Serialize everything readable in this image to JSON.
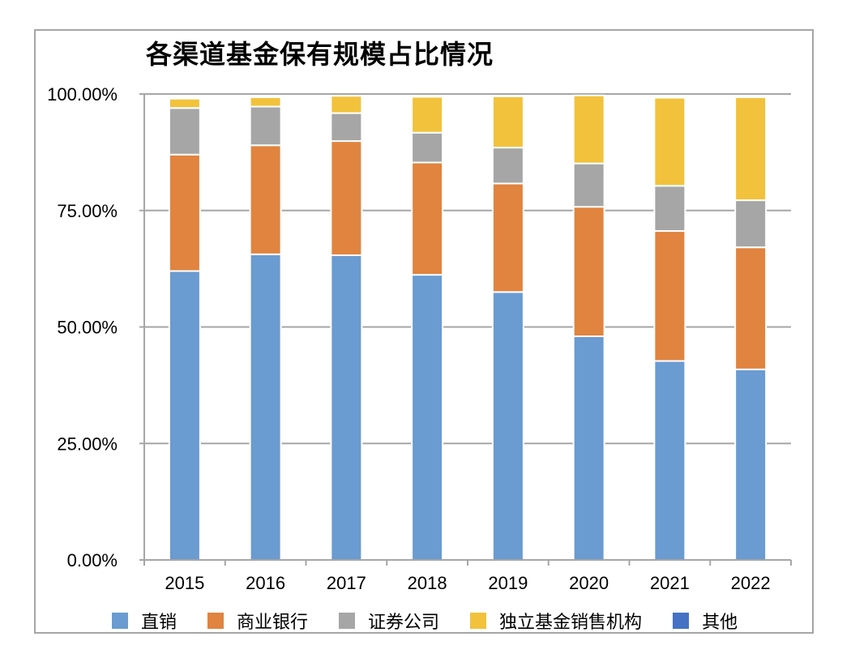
{
  "chart_data": {
    "type": "bar",
    "stacked": true,
    "title": "各渠道基金保有规模占比情况",
    "xlabel": "",
    "ylabel": "",
    "ylim": [
      0,
      100
    ],
    "y_ticks": [
      0,
      25,
      50,
      75,
      100
    ],
    "y_tick_labels": [
      "0.00%",
      "25.00%",
      "50.00%",
      "75.00%",
      "100.00%"
    ],
    "categories": [
      "2015",
      "2016",
      "2017",
      "2018",
      "2019",
      "2020",
      "2021",
      "2022"
    ],
    "grid": true,
    "legend_position": "bottom",
    "series": [
      {
        "name": "直销",
        "color": "#6a9bd1",
        "values": [
          62.0,
          65.6,
          65.4,
          61.2,
          57.5,
          48.0,
          42.7,
          40.9
        ]
      },
      {
        "name": "商业银行",
        "color": "#e0843f",
        "values": [
          25.0,
          23.4,
          24.5,
          24.1,
          23.3,
          27.8,
          27.9,
          26.2
        ]
      },
      {
        "name": "证券公司",
        "color": "#a6a6a6",
        "values": [
          10.0,
          8.3,
          6.0,
          6.4,
          7.7,
          9.3,
          9.7,
          10.1
        ]
      },
      {
        "name": "独立基金销售机构",
        "color": "#f2c23c",
        "values": [
          2.0,
          2.0,
          3.7,
          7.7,
          11.0,
          14.6,
          18.9,
          22.1
        ]
      },
      {
        "name": "其他",
        "color": "#4472c4",
        "values": [
          0.0,
          0.0,
          0.0,
          0.0,
          0.0,
          0.0,
          0.0,
          0.0
        ]
      }
    ]
  }
}
